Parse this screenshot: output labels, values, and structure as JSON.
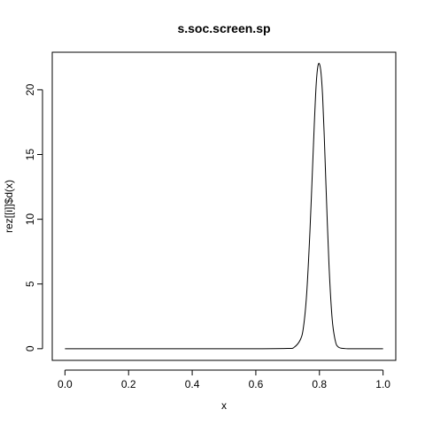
{
  "chart_data": {
    "type": "line",
    "title": "s.soc.screen.sp",
    "xlabel": "x",
    "ylabel": "rez[[i]]$d(x)",
    "xlim": [
      -0.04,
      1.04
    ],
    "ylim": [
      -0.9,
      22.9
    ],
    "x_ticks": [
      0.0,
      0.2,
      0.4,
      0.6,
      0.8,
      1.0
    ],
    "x_tick_labels": [
      "0.0",
      "0.2",
      "0.4",
      "0.6",
      "0.8",
      "1.0"
    ],
    "y_ticks": [
      0,
      5,
      10,
      15,
      20
    ],
    "y_tick_labels": [
      "0",
      "5",
      "10",
      "15",
      "20"
    ],
    "grid": false,
    "legend": "none",
    "line_color": "#000000",
    "series": [
      {
        "x": [
          0.0,
          0.1,
          0.2,
          0.3,
          0.4,
          0.5,
          0.6,
          0.7,
          0.72,
          0.74,
          0.75,
          0.76,
          0.77,
          0.78,
          0.785,
          0.79,
          0.795,
          0.8,
          0.805,
          0.81,
          0.815,
          0.82,
          0.83,
          0.84,
          0.85,
          0.86,
          0.88,
          0.9,
          0.95,
          1.0
        ],
        "y": [
          0,
          0,
          0,
          0,
          0,
          0,
          0,
          0.02,
          0.1,
          0.7,
          1.7,
          4.3,
          9.0,
          15.0,
          18.0,
          20.5,
          21.8,
          22.0,
          21.3,
          19.5,
          16.5,
          13.0,
          6.5,
          2.3,
          0.6,
          0.12,
          0.01,
          0,
          0,
          0
        ]
      }
    ]
  }
}
